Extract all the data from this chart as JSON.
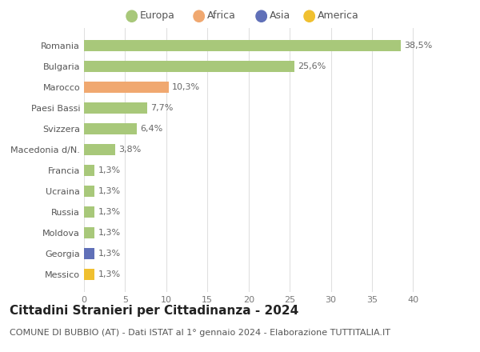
{
  "countries": [
    "Romania",
    "Bulgaria",
    "Marocco",
    "Paesi Bassi",
    "Svizzera",
    "Macedonia d/N.",
    "Francia",
    "Ucraina",
    "Russia",
    "Moldova",
    "Georgia",
    "Messico"
  ],
  "values": [
    38.5,
    25.6,
    10.3,
    7.7,
    6.4,
    3.8,
    1.3,
    1.3,
    1.3,
    1.3,
    1.3,
    1.3
  ],
  "labels": [
    "38,5%",
    "25,6%",
    "10,3%",
    "7,7%",
    "6,4%",
    "3,8%",
    "1,3%",
    "1,3%",
    "1,3%",
    "1,3%",
    "1,3%",
    "1,3%"
  ],
  "bar_colors": [
    "#a8c87a",
    "#a8c87a",
    "#f0a870",
    "#a8c87a",
    "#a8c87a",
    "#a8c87a",
    "#a8c87a",
    "#a8c87a",
    "#a8c87a",
    "#a8c87a",
    "#6070b8",
    "#f0c030"
  ],
  "continent_colors": {
    "Europa": "#a8c87a",
    "Africa": "#f0a870",
    "Asia": "#6070b8",
    "America": "#f0c030"
  },
  "legend_labels": [
    "Europa",
    "Africa",
    "Asia",
    "America"
  ],
  "xlim": [
    0,
    42
  ],
  "xticks": [
    0,
    5,
    10,
    15,
    20,
    25,
    30,
    35,
    40
  ],
  "title": "Cittadini Stranieri per Cittadinanza - 2024",
  "subtitle": "COMUNE DI BUBBIO (AT) - Dati ISTAT al 1° gennaio 2024 - Elaborazione TUTTITALIA.IT",
  "background_color": "#ffffff",
  "grid_color": "#e0e0e0",
  "bar_height": 0.55,
  "title_fontsize": 11,
  "subtitle_fontsize": 8,
  "label_fontsize": 8,
  "tick_fontsize": 8,
  "legend_fontsize": 9
}
